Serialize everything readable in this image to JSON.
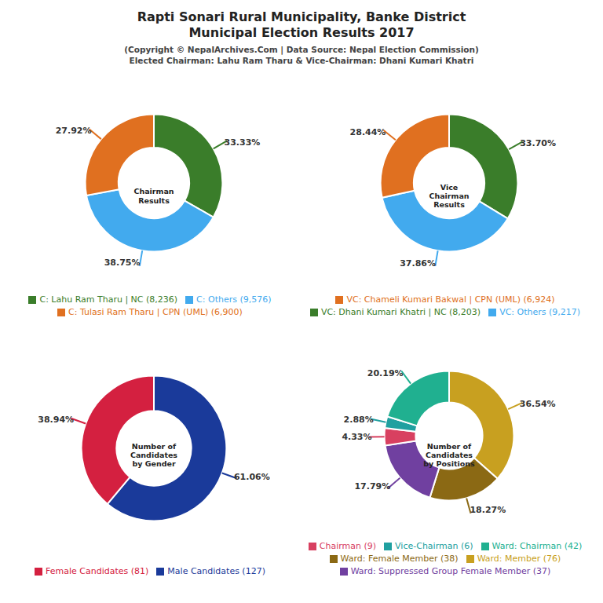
{
  "title": "Rapti Sonari Rural Municipality, Banke District\nMunicipal Election Results 2017",
  "subtitle": "(Copyright © NepalArchives.Com | Data Source: Nepal Election Commission)\nElected Chairman: Lahu Ram Tharu & Vice-Chairman: Dhani Kumari Khatri",
  "chart_data": [
    {
      "type": "pie",
      "title": "Chairman\nResults",
      "categories": [
        "C: Lahu Ram Tharu | NC (8,236)",
        "C: Others (9,576)",
        "C: Tulasi Ram Tharu | CPN (UML) (6,900)"
      ],
      "values": [
        33.33,
        38.75,
        27.92
      ],
      "value_labels": [
        "33.33%",
        "38.75%",
        "27.92%"
      ],
      "colors": [
        "#3a7d2a",
        "#42aaee",
        "#e07020"
      ],
      "data_labels": true,
      "legend": "bottom"
    },
    {
      "type": "pie",
      "title": "Vice\nChairman\nResults",
      "categories": [
        "VC: Dhani Kumari Khatri | NC (8,203)",
        "VC: Others (9,217)",
        "VC: Chameli Kumari Bakwal | CPN (UML) (6,924)"
      ],
      "values": [
        33.7,
        37.86,
        28.44
      ],
      "value_labels": [
        "33.70%",
        "37.86%",
        "28.44%"
      ],
      "colors": [
        "#3a7d2a",
        "#42aaee",
        "#e07020"
      ],
      "data_labels": true,
      "legend": "bottom"
    },
    {
      "type": "pie",
      "title": "Number of\nCandidates\nby Gender",
      "categories": [
        "Male Candidates (127)",
        "Female Candidates (81)"
      ],
      "values": [
        61.06,
        38.94
      ],
      "value_labels": [
        "61.06%",
        "38.94%"
      ],
      "colors": [
        "#1a3a9a",
        "#d42040"
      ],
      "data_labels": true,
      "legend": "bottom"
    },
    {
      "type": "pie",
      "title": "Number of\nCandidates\nby Positions",
      "categories": [
        "Ward: Member (76)",
        "Ward: Female Member (38)",
        "Ward: Suppressed Group Female Member (37)",
        "Chairman (9)",
        "Vice-Chairman (6)",
        "Ward: Chairman (42)"
      ],
      "values": [
        36.54,
        18.27,
        17.79,
        4.33,
        2.88,
        20.19
      ],
      "value_labels": [
        "36.54%",
        "18.27%",
        "17.79%",
        "4.33%",
        "2.88%",
        "20.19%"
      ],
      "colors": [
        "#c8a020",
        "#8b6914",
        "#7040a0",
        "#d84060",
        "#20a0a0",
        "#20b090"
      ],
      "data_labels": true,
      "legend": "bottom"
    }
  ]
}
